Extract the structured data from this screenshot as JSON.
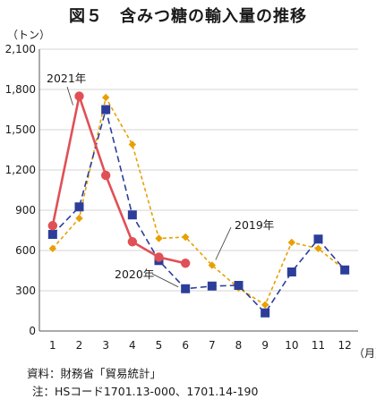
{
  "title": "図５　含みつ糖の輸入量の推移",
  "chart_data": {
    "type": "line",
    "ylabel": "（トン）",
    "xlabel": "（月）",
    "categories": [
      "1",
      "2",
      "3",
      "4",
      "5",
      "6",
      "7",
      "8",
      "9",
      "10",
      "11",
      "12"
    ],
    "ylim": [
      0,
      2100
    ],
    "yticks": [
      0,
      300,
      600,
      900,
      1200,
      1500,
      1800,
      2100
    ],
    "ytick_labels": [
      "0",
      "300",
      "600",
      "900",
      "1,200",
      "1,500",
      "1,800",
      "2,100"
    ],
    "grid": true,
    "series": [
      {
        "name": "2019年",
        "color": "#e8a000",
        "style": "dashed",
        "marker": "diamond",
        "values": [
          615,
          840,
          1740,
          1390,
          690,
          700,
          490,
          320,
          195,
          660,
          615,
          455
        ]
      },
      {
        "name": "2020年",
        "color": "#2c3e9a",
        "style": "dashed",
        "marker": "square",
        "values": [
          720,
          925,
          1650,
          865,
          525,
          315,
          335,
          340,
          135,
          440,
          685,
          455
        ]
      },
      {
        "name": "2021年",
        "color": "#e05055",
        "style": "solid",
        "marker": "circle",
        "values": [
          785,
          1750,
          1160,
          665,
          550,
          505,
          null,
          null,
          null,
          null,
          null,
          null
        ]
      }
    ]
  },
  "notes": {
    "source": "資料：財務省「貿易統計」",
    "footnote": "注：HSコード1701.13-000、1701.14-190"
  }
}
